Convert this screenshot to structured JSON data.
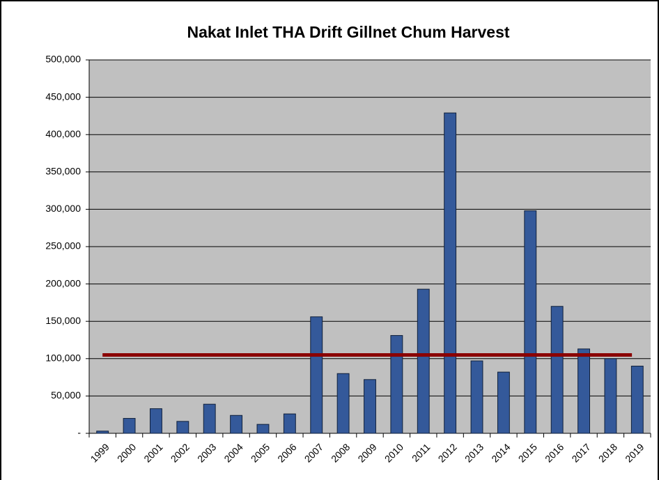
{
  "chart_data": {
    "type": "bar",
    "title": "Nakat Inlet THA Drift Gillnet Chum Harvest",
    "categories": [
      "1999",
      "2000",
      "2001",
      "2002",
      "2003",
      "2004",
      "2005",
      "2006",
      "2007",
      "2008",
      "2009",
      "2010",
      "2011",
      "2012",
      "2013",
      "2014",
      "2015",
      "2016",
      "2017",
      "2018",
      "2019"
    ],
    "values": [
      3000,
      20000,
      33000,
      16000,
      39000,
      24000,
      12000,
      26000,
      156000,
      80000,
      72000,
      131000,
      193000,
      429000,
      97000,
      82000,
      298000,
      170000,
      113000,
      100000,
      90000
    ],
    "color": "#34599a",
    "reference_line": {
      "value": 105000,
      "color": "#8b0000"
    },
    "ylim": [
      0,
      500000
    ],
    "yticks": [
      {
        "value": 0,
        "label": "-"
      },
      {
        "value": 50000,
        "label": "50,000"
      },
      {
        "value": 100000,
        "label": "100,000"
      },
      {
        "value": 150000,
        "label": "150,000"
      },
      {
        "value": 200000,
        "label": "200,000"
      },
      {
        "value": 250000,
        "label": "250,000"
      },
      {
        "value": 300000,
        "label": "300,000"
      },
      {
        "value": 350000,
        "label": "350,000"
      },
      {
        "value": 400000,
        "label": "400,000"
      },
      {
        "value": 450000,
        "label": "450,000"
      },
      {
        "value": 500000,
        "label": "500,000"
      }
    ],
    "grid": true
  }
}
